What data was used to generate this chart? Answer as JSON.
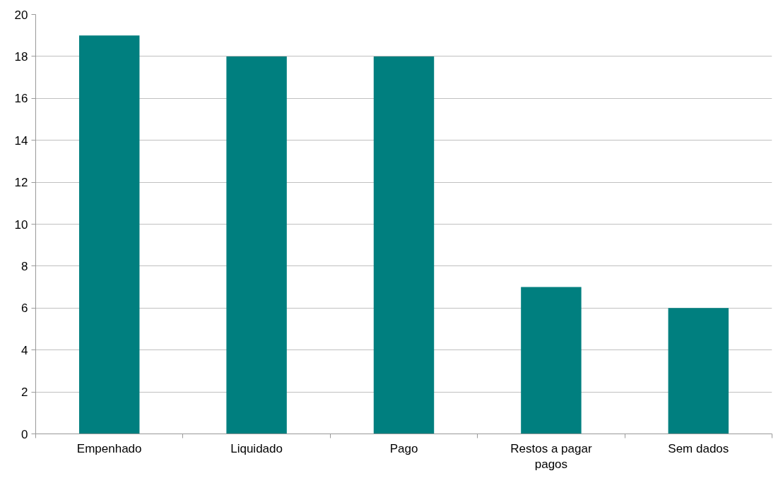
{
  "chart_data": {
    "type": "bar",
    "categories": [
      "Empenhado",
      "Liquidado",
      "Pago",
      "Restos a pagar pagos",
      "Sem dados"
    ],
    "values": [
      19,
      18,
      18,
      7,
      6
    ],
    "color": "#007f7f",
    "ylim": [
      0,
      20
    ],
    "yticks": [
      0,
      2,
      4,
      6,
      8,
      10,
      12,
      14,
      16,
      18,
      20
    ],
    "grid": "y"
  }
}
